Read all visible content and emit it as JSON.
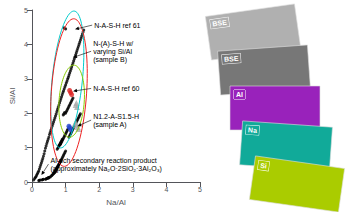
{
  "chart_data": {
    "type": "scatter",
    "xlabel": "Na/Al",
    "ylabel": "Si/Al",
    "xlim": [
      0,
      5
    ],
    "ylim": [
      0,
      5
    ],
    "xticks": [
      0,
      1,
      2,
      3,
      4,
      5
    ],
    "yticks": [
      0,
      1,
      2,
      3,
      4,
      5
    ],
    "grid": false,
    "series": [
      {
        "color": "black",
        "marker": "circle",
        "values": [
          [
            0.05,
            0.06
          ],
          [
            0.08,
            0.1
          ],
          [
            0.1,
            0.13
          ],
          [
            0.12,
            0.16
          ],
          [
            0.14,
            0.2
          ],
          [
            0.16,
            0.24
          ],
          [
            0.18,
            0.28
          ],
          [
            0.2,
            0.32
          ],
          [
            0.22,
            0.38
          ],
          [
            0.24,
            0.44
          ],
          [
            0.26,
            0.5
          ],
          [
            0.28,
            0.56
          ],
          [
            0.3,
            0.62
          ],
          [
            0.32,
            0.68
          ],
          [
            0.34,
            0.75
          ],
          [
            0.36,
            0.82
          ],
          [
            0.38,
            0.9
          ],
          [
            0.4,
            0.98
          ],
          [
            0.42,
            1.05
          ],
          [
            0.44,
            1.12
          ],
          [
            0.46,
            1.18
          ],
          [
            0.48,
            1.24
          ],
          [
            0.5,
            1.3
          ],
          [
            0.52,
            1.38
          ],
          [
            0.54,
            1.44
          ],
          [
            0.56,
            1.5
          ],
          [
            0.58,
            1.56
          ],
          [
            0.6,
            1.62
          ],
          [
            0.62,
            1.68
          ],
          [
            0.64,
            1.74
          ],
          [
            0.66,
            1.8
          ],
          [
            0.68,
            1.86
          ],
          [
            0.7,
            1.92
          ],
          [
            0.72,
            1.98
          ],
          [
            0.74,
            2.05
          ],
          [
            0.76,
            2.11
          ],
          [
            0.78,
            2.17
          ],
          [
            0.8,
            2.23
          ],
          [
            0.82,
            2.3
          ],
          [
            0.84,
            2.36
          ],
          [
            0.86,
            2.42
          ],
          [
            0.88,
            2.48
          ],
          [
            0.9,
            2.54
          ],
          [
            0.92,
            2.6
          ],
          [
            0.94,
            2.65
          ],
          [
            0.96,
            2.71
          ],
          [
            0.98,
            2.77
          ],
          [
            1.0,
            2.82
          ],
          [
            1.02,
            2.88
          ],
          [
            1.04,
            2.93
          ],
          [
            1.06,
            2.99
          ],
          [
            1.08,
            3.04
          ],
          [
            1.1,
            3.1
          ],
          [
            1.12,
            3.16
          ],
          [
            1.14,
            3.22
          ],
          [
            1.16,
            3.28
          ],
          [
            1.18,
            3.34
          ],
          [
            1.2,
            3.4
          ],
          [
            1.22,
            3.46
          ],
          [
            1.24,
            3.52
          ],
          [
            1.26,
            3.58
          ],
          [
            1.28,
            3.64
          ],
          [
            1.3,
            3.7
          ],
          [
            1.32,
            3.76
          ],
          [
            1.34,
            3.82
          ],
          [
            1.36,
            3.88
          ],
          [
            1.38,
            3.94
          ],
          [
            1.4,
            4.0
          ],
          [
            1.42,
            4.06
          ],
          [
            1.44,
            4.12
          ],
          [
            1.46,
            4.18
          ],
          [
            1.48,
            4.24
          ],
          [
            1.5,
            4.3
          ],
          [
            1.52,
            4.36
          ],
          [
            1.54,
            4.42
          ],
          [
            0.95,
            4.48
          ],
          [
            1.0,
            4.45
          ],
          [
            0.7,
            0.3
          ],
          [
            0.72,
            0.34
          ],
          [
            0.74,
            0.38
          ],
          [
            0.76,
            0.42
          ],
          [
            0.78,
            0.46
          ],
          [
            0.8,
            0.5
          ],
          [
            0.82,
            0.55
          ],
          [
            0.84,
            0.58
          ],
          [
            0.86,
            0.62
          ],
          [
            0.88,
            0.66
          ],
          [
            0.9,
            0.7
          ],
          [
            0.92,
            0.74
          ],
          [
            0.94,
            0.78
          ],
          [
            0.96,
            0.82
          ],
          [
            0.98,
            0.86
          ],
          [
            1.0,
            0.9
          ],
          [
            0.65,
            0.25
          ],
          [
            0.68,
            0.28
          ],
          [
            0.6,
            0.2
          ],
          [
            0.62,
            0.22
          ],
          [
            0.64,
            0.25
          ],
          [
            0.66,
            0.28
          ],
          [
            0.68,
            0.32
          ],
          [
            0.7,
            0.35
          ],
          [
            0.72,
            0.38
          ],
          [
            0.74,
            0.42
          ],
          [
            0.76,
            0.45
          ],
          [
            0.78,
            0.48
          ],
          [
            0.8,
            0.52
          ],
          [
            0.82,
            0.55
          ],
          [
            0.84,
            0.58
          ],
          [
            0.86,
            0.62
          ],
          [
            0.55,
            0.15
          ],
          [
            0.58,
            0.18
          ],
          [
            0.5,
            0.12
          ],
          [
            0.52,
            0.14
          ],
          [
            0.4,
            0.08
          ],
          [
            0.42,
            0.09
          ],
          [
            0.44,
            0.1
          ],
          [
            0.46,
            0.11
          ],
          [
            0.48,
            0.12
          ],
          [
            0.5,
            0.13
          ],
          [
            0.3,
            0.06
          ],
          [
            0.32,
            0.07
          ],
          [
            0.34,
            0.08
          ],
          [
            0.2,
            0.04
          ],
          [
            0.22,
            0.05
          ],
          [
            0.25,
            0.06
          ],
          [
            0.85,
            1.1
          ],
          [
            0.87,
            1.14
          ],
          [
            0.89,
            1.18
          ],
          [
            0.91,
            1.22
          ],
          [
            0.93,
            1.26
          ],
          [
            0.95,
            1.3
          ],
          [
            0.97,
            1.34
          ],
          [
            0.99,
            1.38
          ],
          [
            1.01,
            1.42
          ],
          [
            1.03,
            1.46
          ],
          [
            1.05,
            1.5
          ],
          [
            1.07,
            1.54
          ],
          [
            0.8,
            1.05
          ],
          [
            0.82,
            1.08
          ],
          [
            0.84,
            1.12
          ],
          [
            0.86,
            1.16
          ],
          [
            0.88,
            1.2
          ],
          [
            0.9,
            1.24
          ],
          [
            0.75,
            0.95
          ],
          [
            0.77,
            0.99
          ],
          [
            0.79,
            1.02
          ],
          [
            0.81,
            1.06
          ],
          [
            0.83,
            1.09
          ],
          [
            0.85,
            1.13
          ],
          [
            1.1,
            1.3
          ],
          [
            1.12,
            1.34
          ],
          [
            1.14,
            1.38
          ],
          [
            1.16,
            1.42
          ],
          [
            1.18,
            1.46
          ],
          [
            1.2,
            1.5
          ],
          [
            1.22,
            1.54
          ],
          [
            1.24,
            1.58
          ],
          [
            1.26,
            1.62
          ],
          [
            1.28,
            1.66
          ],
          [
            1.3,
            1.7
          ],
          [
            1.32,
            1.74
          ],
          [
            1.34,
            1.78
          ],
          [
            1.36,
            1.82
          ],
          [
            1.38,
            1.86
          ],
          [
            1.4,
            1.9
          ],
          [
            1.42,
            1.94
          ],
          [
            1.44,
            1.98
          ],
          [
            1.0,
            2.0
          ],
          [
            1.02,
            2.04
          ],
          [
            1.04,
            2.08
          ],
          [
            1.06,
            2.12
          ],
          [
            1.08,
            2.16
          ],
          [
            1.1,
            2.2
          ],
          [
            1.12,
            2.24
          ],
          [
            1.14,
            2.28
          ],
          [
            1.16,
            2.32
          ],
          [
            1.18,
            2.36
          ],
          [
            1.2,
            2.4
          ],
          [
            1.22,
            2.44
          ],
          [
            0.93,
            1.95
          ],
          [
            0.95,
            1.98
          ],
          [
            0.97,
            2.02
          ]
        ]
      },
      {
        "color": "#dd2222",
        "marker": "circle",
        "values": [
          [
            1.15,
            2.6
          ],
          [
            1.18,
            2.54
          ],
          [
            1.12,
            2.66
          ]
        ]
      },
      {
        "color": "#2244cc",
        "marker": "circle",
        "values": [
          [
            1.12,
            1.58
          ],
          [
            1.15,
            1.52
          ],
          [
            1.1,
            1.62
          ]
        ]
      },
      {
        "color": "#aaaaaa",
        "marker": "triangle",
        "values": [
          [
            1.3,
            2.24
          ],
          [
            1.34,
            2.18
          ],
          [
            1.32,
            2.3
          ],
          [
            1.28,
            1.7
          ],
          [
            1.32,
            1.64
          ],
          [
            1.3,
            1.74
          ],
          [
            1.36,
            1.6
          ],
          [
            1.38,
            1.54
          ]
        ]
      }
    ],
    "ellipses": [
      {
        "cx": 1.05,
        "cy": 2.98,
        "width": 0.9,
        "height": 4.0,
        "angle": -6,
        "color": "#00cccc"
      },
      {
        "cx": 1.1,
        "cy": 2.6,
        "width": 1.05,
        "height": 4.3,
        "angle": -4,
        "color": "#ee2222"
      },
      {
        "cx": 1.18,
        "cy": 2.35,
        "width": 0.75,
        "height": 2.1,
        "angle": -4,
        "color": "#88cc00"
      }
    ],
    "annotations": [
      {
        "text": "N-A-S-H ref 61",
        "xy": [
          1.28,
          4.44
        ],
        "xytext": [
          1.85,
          4.56
        ]
      },
      {
        "text": "N-(A)-S-H w/\nvarying Si/Al\n(sample B)",
        "xy": [
          1.22,
          3.62
        ],
        "xytext": [
          1.82,
          3.8
        ]
      },
      {
        "text": "N-A-S-H ref 60",
        "xy": [
          1.22,
          2.64
        ],
        "xytext": [
          1.82,
          2.72
        ]
      },
      {
        "text": "N1.2-A-S1.5-H\n(sample A)",
        "xy": [
          1.35,
          1.62
        ],
        "xytext": [
          1.82,
          1.8
        ]
      },
      {
        "text": "Al-rich secondary reaction product\n(approximately Na₂O·2SiO₂·3Al₂O₃)",
        "xy": [
          0.28,
          0.2
        ],
        "xytext": [
          0.55,
          0.52
        ]
      }
    ],
    "panels": [
      {
        "label": "BSE",
        "color": "#b0b0b0"
      },
      {
        "label": "BSE",
        "color": "#777777"
      },
      {
        "label": "Al",
        "color": "#9922bb"
      },
      {
        "label": "Na",
        "color": "#11aa99"
      },
      {
        "label": "Si",
        "color": "#aacc00"
      }
    ]
  }
}
